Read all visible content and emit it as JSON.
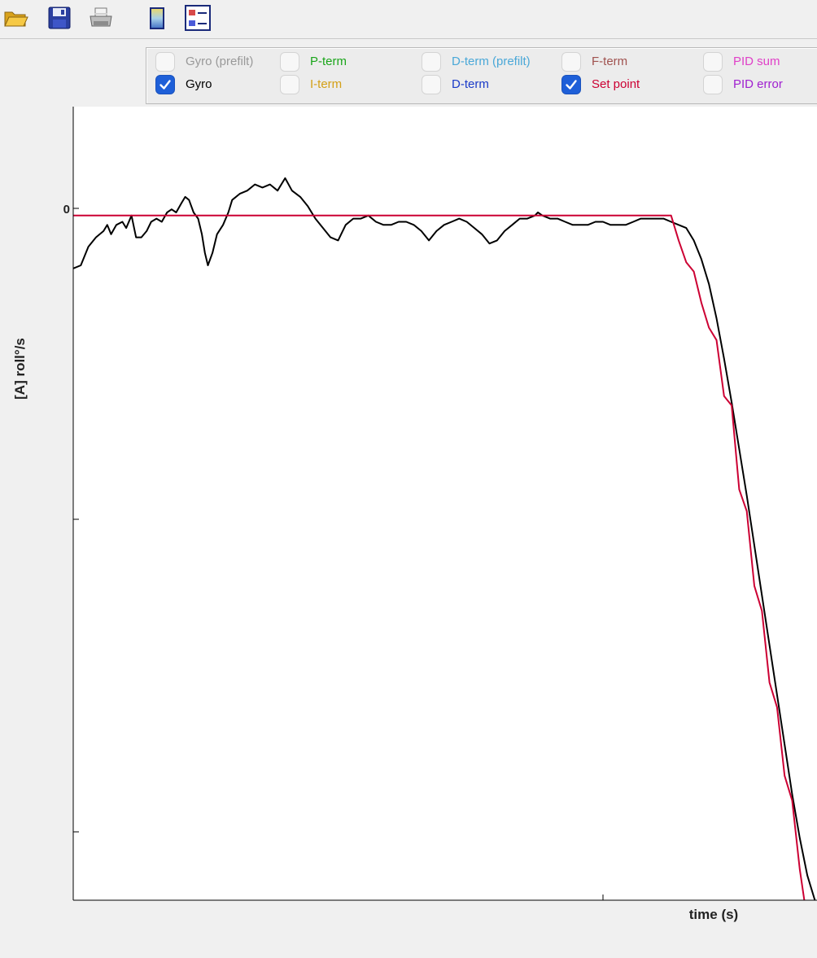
{
  "toolbar": {
    "buttons": [
      {
        "name": "open-folder-icon"
      },
      {
        "name": "save-floppy-icon"
      },
      {
        "name": "print-icon"
      },
      {
        "name": "colorbar-icon"
      },
      {
        "name": "legend-icon"
      }
    ]
  },
  "legend": {
    "items": [
      {
        "label": "Gyro (prefilt)",
        "color": "#999999",
        "checked": false
      },
      {
        "label": "Gyro",
        "color": "#000000",
        "checked": true
      },
      {
        "label": "P-term",
        "color": "#1aa51a",
        "checked": false
      },
      {
        "label": "I-term",
        "color": "#d4a017",
        "checked": false
      },
      {
        "label": "D-term (prefilt)",
        "color": "#4aa8d8",
        "checked": false
      },
      {
        "label": "D-term",
        "color": "#1a3ac8",
        "checked": false
      },
      {
        "label": "F-term",
        "color": "#a0524f",
        "checked": false
      },
      {
        "label": "Set point",
        "color": "#cc0033",
        "checked": true
      },
      {
        "label": "PID sum",
        "color": "#e040c8",
        "checked": false
      },
      {
        "label": "PID error",
        "color": "#a020d0",
        "checked": false
      }
    ]
  },
  "chart_data": {
    "type": "line",
    "xlabel": "time (s)",
    "ylabel": "[A] roll°/s",
    "y_tick_labels": [
      "0"
    ],
    "x_tick_labels": [],
    "xlim": [
      0,
      100
    ],
    "ylim": [
      -220,
      35
    ],
    "grid": false,
    "series": [
      {
        "name": "Gyro",
        "color": "#000000",
        "points": [
          [
            0,
            -17
          ],
          [
            1,
            -16
          ],
          [
            2,
            -10
          ],
          [
            3,
            -7
          ],
          [
            4,
            -5
          ],
          [
            4.5,
            -3
          ],
          [
            5,
            -6
          ],
          [
            5.7,
            -3
          ],
          [
            6.5,
            -2
          ],
          [
            7,
            -4
          ],
          [
            7.7,
            0
          ],
          [
            8.3,
            -7
          ],
          [
            9,
            -7
          ],
          [
            9.7,
            -5
          ],
          [
            10.3,
            -2
          ],
          [
            11,
            -1
          ],
          [
            11.7,
            -2
          ],
          [
            12.4,
            1
          ],
          [
            13,
            2
          ],
          [
            13.6,
            1
          ],
          [
            14.3,
            4
          ],
          [
            14.8,
            6
          ],
          [
            15.3,
            5
          ],
          [
            15.9,
            1
          ],
          [
            16.5,
            -1
          ],
          [
            17,
            -6
          ],
          [
            17.4,
            -12
          ],
          [
            17.8,
            -16
          ],
          [
            18.4,
            -12
          ],
          [
            19,
            -6
          ],
          [
            19.8,
            -3
          ],
          [
            20.5,
            1
          ],
          [
            21,
            5
          ],
          [
            22,
            7
          ],
          [
            23,
            8
          ],
          [
            24,
            10
          ],
          [
            25,
            9
          ],
          [
            26,
            10
          ],
          [
            27,
            8
          ],
          [
            28,
            12
          ],
          [
            28.9,
            8
          ],
          [
            30,
            6
          ],
          [
            31,
            3
          ],
          [
            32,
            -1
          ],
          [
            33,
            -4
          ],
          [
            34,
            -7
          ],
          [
            35,
            -8
          ],
          [
            36,
            -3
          ],
          [
            37,
            -1
          ],
          [
            38,
            -1
          ],
          [
            39,
            0
          ],
          [
            40,
            -2
          ],
          [
            41,
            -3
          ],
          [
            42,
            -3
          ],
          [
            43,
            -2
          ],
          [
            44,
            -2
          ],
          [
            45,
            -3
          ],
          [
            46,
            -5
          ],
          [
            47,
            -8
          ],
          [
            48,
            -5
          ],
          [
            49,
            -3
          ],
          [
            50,
            -2
          ],
          [
            51,
            -1
          ],
          [
            52,
            -2
          ],
          [
            53,
            -4
          ],
          [
            54,
            -6
          ],
          [
            55,
            -9
          ],
          [
            56,
            -8
          ],
          [
            57,
            -5
          ],
          [
            58,
            -3
          ],
          [
            59,
            -1
          ],
          [
            60,
            -1
          ],
          [
            61,
            0
          ],
          [
            61.4,
            1
          ],
          [
            62,
            0
          ],
          [
            63,
            -1
          ],
          [
            64,
            -1
          ],
          [
            65,
            -2
          ],
          [
            66,
            -3
          ],
          [
            67,
            -3
          ],
          [
            68,
            -3
          ],
          [
            69,
            -2
          ],
          [
            70,
            -2
          ],
          [
            71,
            -3
          ],
          [
            72,
            -3
          ],
          [
            73,
            -3
          ],
          [
            74,
            -2
          ],
          [
            75,
            -1
          ],
          [
            76,
            -1
          ],
          [
            77,
            -1
          ],
          [
            78,
            -1
          ],
          [
            79,
            -2
          ],
          [
            80,
            -3
          ],
          [
            81,
            -4
          ],
          [
            82,
            -8
          ],
          [
            83,
            -14
          ],
          [
            84,
            -22
          ],
          [
            85,
            -33
          ],
          [
            86,
            -46
          ],
          [
            87,
            -60
          ],
          [
            88,
            -75
          ],
          [
            89,
            -90
          ],
          [
            90,
            -106
          ],
          [
            91,
            -122
          ],
          [
            92,
            -138
          ],
          [
            93,
            -154
          ],
          [
            94,
            -170
          ],
          [
            95,
            -186
          ],
          [
            96,
            -200
          ],
          [
            97,
            -212
          ],
          [
            98,
            -220
          ]
        ]
      },
      {
        "name": "Set point",
        "color": "#cc0033",
        "points": [
          [
            0,
            0
          ],
          [
            79,
            0
          ],
          [
            80,
            -8
          ],
          [
            81,
            -15
          ],
          [
            82,
            -18
          ],
          [
            83,
            -28
          ],
          [
            84,
            -36
          ],
          [
            85,
            -40
          ],
          [
            86,
            -58
          ],
          [
            87,
            -61
          ],
          [
            88,
            -88
          ],
          [
            89,
            -95
          ],
          [
            90,
            -119
          ],
          [
            91,
            -127
          ],
          [
            92,
            -150
          ],
          [
            93,
            -158
          ],
          [
            94,
            -180
          ],
          [
            95,
            -188
          ],
          [
            96,
            -210
          ],
          [
            96.6,
            -220
          ]
        ]
      }
    ]
  }
}
